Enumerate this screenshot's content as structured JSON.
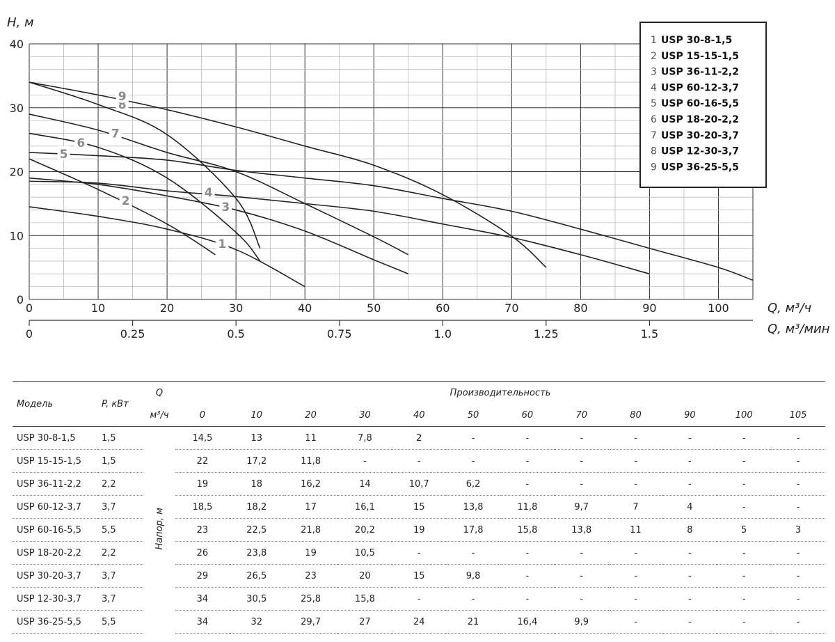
{
  "chart_data": {
    "type": "line",
    "ylabel": "H, м",
    "xlabel": "Q, м³/ч",
    "x2label": "Q, м³/мин",
    "xlim": [
      0,
      105
    ],
    "ylim": [
      0,
      40
    ],
    "x_ticks": [
      0,
      10,
      20,
      30,
      40,
      50,
      60,
      70,
      80,
      90,
      100
    ],
    "y_ticks": [
      0,
      10,
      20,
      30,
      40
    ],
    "x2_ticks": [
      "0",
      "0.25",
      "0.5",
      "0.75",
      "1.0",
      "1.25",
      "1.5"
    ],
    "x2_tick_values": [
      0,
      0.25,
      0.5,
      0.75,
      1.0,
      1.25,
      1.5
    ],
    "grid": true,
    "legend_position": "top-right",
    "series": [
      {
        "name": "USP 30-8-1,5",
        "label": "1",
        "label_x": 28,
        "label_y": 8.7,
        "x": [
          0,
          10,
          20,
          30,
          40
        ],
        "y": [
          14.5,
          13,
          11,
          7.8,
          2
        ]
      },
      {
        "name": "USP 15-15-1,5",
        "label": "2",
        "label_x": 14,
        "label_y": 15.5,
        "x": [
          0,
          10,
          20,
          27
        ],
        "y": [
          22,
          17.2,
          11.8,
          7
        ]
      },
      {
        "name": "USP 36-11-2,2",
        "label": "3",
        "label_x": 28.5,
        "label_y": 14.5,
        "x": [
          0,
          10,
          20,
          30,
          40,
          50,
          55
        ],
        "y": [
          19,
          18,
          16.2,
          14,
          10.7,
          6.2,
          4
        ]
      },
      {
        "name": "USP 60-12-3,7",
        "label": "4",
        "label_x": 26,
        "label_y": 16.8,
        "x": [
          0,
          10,
          20,
          30,
          40,
          50,
          60,
          70,
          80,
          90
        ],
        "y": [
          18.5,
          18.2,
          17,
          16.1,
          15,
          13.8,
          11.8,
          9.7,
          7,
          4
        ]
      },
      {
        "name": "USP 60-16-5,5",
        "label": "5",
        "label_x": 5,
        "label_y": 22.8,
        "x": [
          0,
          10,
          20,
          30,
          40,
          50,
          60,
          70,
          80,
          90,
          100,
          105
        ],
        "y": [
          23,
          22.5,
          21.8,
          20.2,
          19,
          17.8,
          15.8,
          13.8,
          11,
          8,
          5,
          3
        ]
      },
      {
        "name": "USP 18-20-2,2",
        "label": "6",
        "label_x": 7.5,
        "label_y": 24.5,
        "x": [
          0,
          10,
          20,
          30,
          33.5
        ],
        "y": [
          26,
          23.8,
          19,
          10.5,
          6
        ]
      },
      {
        "name": "USP 30-20-3,7",
        "label": "7",
        "label_x": 12.5,
        "label_y": 26,
        "x": [
          0,
          10,
          20,
          30,
          40,
          50,
          55
        ],
        "y": [
          29,
          26.5,
          23,
          20,
          15,
          9.8,
          7
        ]
      },
      {
        "name": "USP 12-30-3,7",
        "label": "8",
        "label_x": 13.5,
        "label_y": 30.5,
        "x": [
          0,
          10,
          20,
          30,
          33.5
        ],
        "y": [
          34,
          30.5,
          25.8,
          15.8,
          8
        ]
      },
      {
        "name": "USP 36-25-5,5",
        "label": "9",
        "label_x": 13.5,
        "label_y": 31.8,
        "x": [
          0,
          10,
          20,
          30,
          40,
          50,
          60,
          70,
          75
        ],
        "y": [
          34,
          32,
          29.7,
          27,
          24,
          21,
          16.4,
          9.9,
          5
        ]
      }
    ],
    "legend": [
      {
        "num": "1",
        "name": "USP 30-8-1,5"
      },
      {
        "num": "2",
        "name": "USP 15-15-1,5"
      },
      {
        "num": "3",
        "name": "USP 36-11-2,2"
      },
      {
        "num": "4",
        "name": "USP 60-12-3,7"
      },
      {
        "num": "5",
        "name": "USP 60-16-5,5"
      },
      {
        "num": "6",
        "name": "USP 18-20-2,2"
      },
      {
        "num": "7",
        "name": "USP 30-20-3,7"
      },
      {
        "num": "8",
        "name": "USP 12-30-3,7"
      },
      {
        "num": "9",
        "name": "USP 36-25-5,5"
      }
    ]
  },
  "table": {
    "model_header": "Модель",
    "power_header": "P, кВт",
    "q_header": "Q",
    "unit_header": "м³/ч",
    "perf_header": "Производительность",
    "head_label": "Напор, м",
    "columns": [
      "0",
      "10",
      "20",
      "30",
      "40",
      "50",
      "60",
      "70",
      "80",
      "90",
      "100",
      "105"
    ],
    "rows": [
      {
        "model": "USP 30-8-1,5",
        "power": "1,5",
        "values": [
          "14,5",
          "13",
          "11",
          "7,8",
          "2",
          "-",
          "-",
          "-",
          "-",
          "-",
          "-",
          "-"
        ]
      },
      {
        "model": "USP 15-15-1,5",
        "power": "1,5",
        "values": [
          "22",
          "17,2",
          "11,8",
          "-",
          "-",
          "-",
          "-",
          "-",
          "-",
          "-",
          "-",
          "-"
        ]
      },
      {
        "model": "USP 36-11-2,2",
        "power": "2,2",
        "values": [
          "19",
          "18",
          "16,2",
          "14",
          "10,7",
          "6,2",
          "-",
          "-",
          "-",
          "-",
          "-",
          "-"
        ]
      },
      {
        "model": "USP 60-12-3,7",
        "power": "3,7",
        "values": [
          "18,5",
          "18,2",
          "17",
          "16,1",
          "15",
          "13,8",
          "11,8",
          "9,7",
          "7",
          "4",
          "-",
          "-"
        ]
      },
      {
        "model": "USP 60-16-5,5",
        "power": "5,5",
        "values": [
          "23",
          "22,5",
          "21,8",
          "20,2",
          "19",
          "17,8",
          "15,8",
          "13,8",
          "11",
          "8",
          "5",
          "3"
        ]
      },
      {
        "model": "USP 18-20-2,2",
        "power": "2,2",
        "values": [
          "26",
          "23,8",
          "19",
          "10,5",
          "-",
          "-",
          "-",
          "-",
          "-",
          "-",
          "-",
          "-"
        ]
      },
      {
        "model": "USP 30-20-3,7",
        "power": "3,7",
        "values": [
          "29",
          "26,5",
          "23",
          "20",
          "15",
          "9,8",
          "-",
          "-",
          "-",
          "-",
          "-",
          "-"
        ]
      },
      {
        "model": "USP 12-30-3,7",
        "power": "3,7",
        "values": [
          "34",
          "30,5",
          "25,8",
          "15,8",
          "-",
          "-",
          "-",
          "-",
          "-",
          "-",
          "-",
          "-"
        ]
      },
      {
        "model": "USP 36-25-5,5",
        "power": "5,5",
        "values": [
          "34",
          "32",
          "29,7",
          "27",
          "24",
          "21",
          "16,4",
          "9,9",
          "-",
          "-",
          "-",
          "-"
        ]
      }
    ]
  }
}
